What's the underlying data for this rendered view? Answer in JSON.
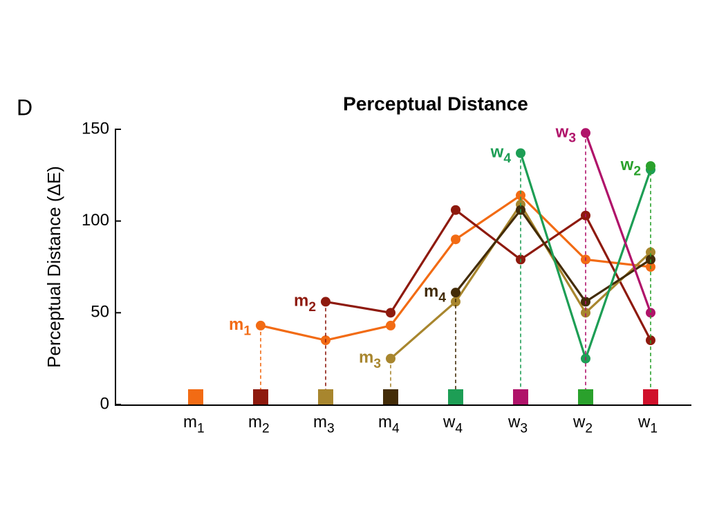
{
  "chart_data": {
    "type": "line",
    "panel": "D",
    "title": "Perceptual Distance",
    "y_label": "Perceptual Distance (ΔE)",
    "categories": [
      [
        "m",
        "1"
      ],
      [
        "m",
        "2"
      ],
      [
        "m",
        "3"
      ],
      [
        "m",
        "4"
      ],
      [
        "w",
        "4"
      ],
      [
        "w",
        "3"
      ],
      [
        "w",
        "2"
      ],
      [
        "w",
        "1"
      ]
    ],
    "category_colors": [
      "#f26b14",
      "#8e1a0e",
      "#a8862e",
      "#432c08",
      "#1d9e55",
      "#b0136a",
      "#2aa12c",
      "#d0112b"
    ],
    "ylim": [
      0,
      150
    ],
    "yticks": [
      0,
      50,
      100,
      150
    ],
    "series": [
      {
        "name": [
          "m",
          "1"
        ],
        "color": "#f26b14",
        "values": [
          null,
          43,
          35,
          43,
          90,
          114,
          79,
          75
        ]
      },
      {
        "name": [
          "m",
          "2"
        ],
        "color": "#8e1a0e",
        "values": [
          null,
          null,
          56,
          50,
          106,
          79,
          103,
          35
        ]
      },
      {
        "name": [
          "m",
          "3"
        ],
        "color": "#a8862e",
        "values": [
          null,
          null,
          null,
          25,
          56,
          109,
          50,
          83
        ]
      },
      {
        "name": [
          "m",
          "4"
        ],
        "color": "#432c08",
        "values": [
          null,
          null,
          null,
          null,
          61,
          106,
          56,
          79
        ]
      },
      {
        "name": [
          "w",
          "4"
        ],
        "color": "#1d9e55",
        "values": [
          null,
          null,
          null,
          null,
          null,
          137,
          25,
          128
        ]
      },
      {
        "name": [
          "w",
          "3"
        ],
        "color": "#b0136a",
        "values": [
          null,
          null,
          null,
          null,
          null,
          null,
          148,
          50
        ]
      },
      {
        "name": [
          "w",
          "2"
        ],
        "color": "#2aa12c",
        "values": [
          null,
          null,
          null,
          null,
          null,
          null,
          null,
          130
        ]
      }
    ]
  }
}
